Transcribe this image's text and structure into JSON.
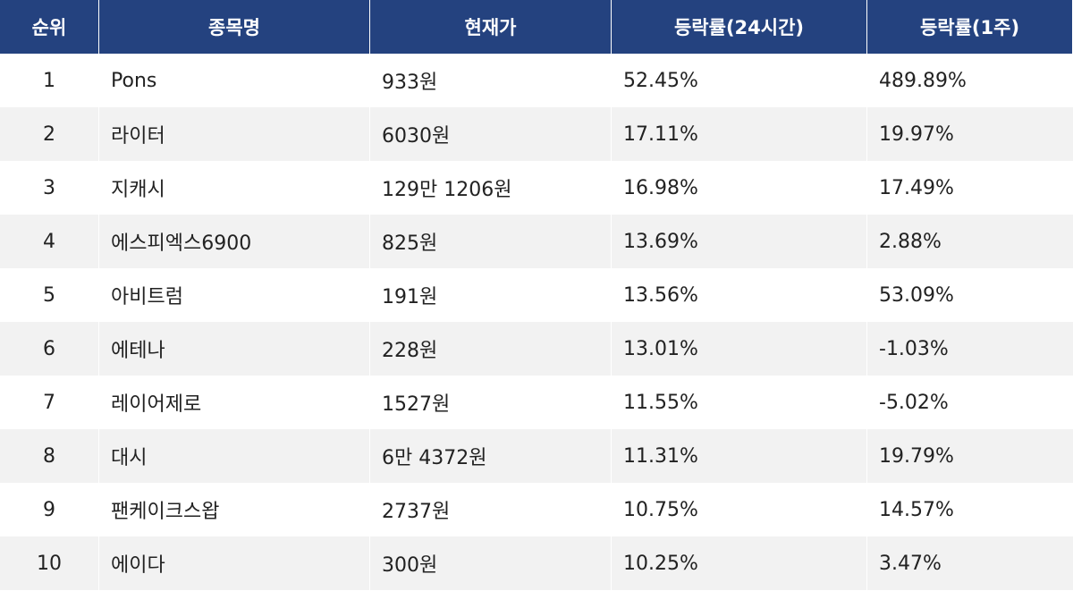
{
  "chart_data": {
    "type": "table",
    "columns": [
      "순위",
      "종목명",
      "현재가",
      "등락률(24시간)",
      "등락률(1주)"
    ],
    "rows": [
      [
        "1",
        "Pons",
        "933원",
        "52.45%",
        "489.89%"
      ],
      [
        "2",
        "라이터",
        "6030원",
        "17.11%",
        "19.97%"
      ],
      [
        "3",
        "지캐시",
        "129만 1206원",
        "16.98%",
        "17.49%"
      ],
      [
        "4",
        "에스피엑스6900",
        "825원",
        "13.69%",
        "2.88%"
      ],
      [
        "5",
        "아비트럼",
        "191원",
        "13.56%",
        "53.09%"
      ],
      [
        "6",
        "에테나",
        "228원",
        "13.01%",
        "-1.03%"
      ],
      [
        "7",
        "레이어제로",
        "1527원",
        "11.55%",
        "-5.02%"
      ],
      [
        "8",
        "대시",
        "6만 4372원",
        "11.31%",
        "19.79%"
      ],
      [
        "9",
        "팬케이크스왑",
        "2737원",
        "10.75%",
        "14.57%"
      ],
      [
        "10",
        "에이다",
        "300원",
        "10.25%",
        "3.47%"
      ]
    ]
  },
  "colors": {
    "header_bg": "#24427f",
    "header_text": "#ffffff",
    "row_alt_bg": "#f2f2f2",
    "row_bg": "#ffffff",
    "text": "#222222"
  }
}
